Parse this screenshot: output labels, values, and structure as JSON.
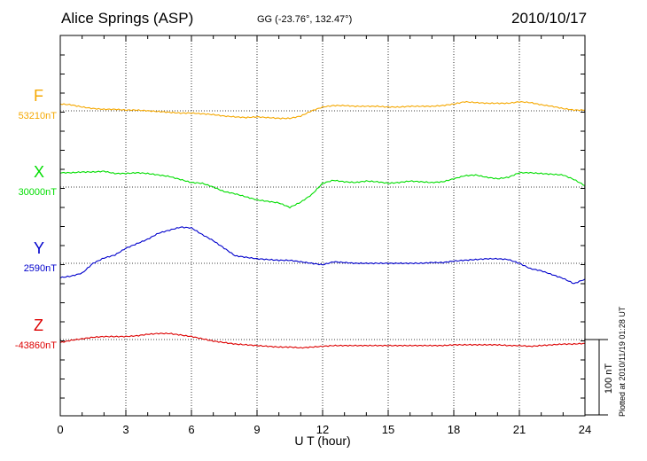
{
  "header": {
    "station": "Alice Springs (ASP)",
    "coords": "GG (-23.76°, 132.47°)",
    "date": "2010/10/17"
  },
  "footer": {
    "plotted_note": "Plotted at 2010/11/19 01:28 UT"
  },
  "scale_bar": {
    "label": "100 nT",
    "value": 100
  },
  "colors": {
    "F": "#f5a800",
    "X": "#00dd00",
    "Y": "#0000cc",
    "Z": "#dd0000"
  },
  "chart_data": {
    "type": "line",
    "xlabel": "U T (hour)",
    "xlim": [
      0,
      24
    ],
    "xticks": [
      0,
      3,
      6,
      9,
      12,
      15,
      18,
      21,
      24
    ],
    "xtick_labels": [
      "0",
      "3",
      "6",
      "9",
      "12",
      "15",
      "18",
      "21",
      "24"
    ],
    "y_unit": "nT",
    "grid": true,
    "series": [
      {
        "name": "F",
        "baseline_label": "53210nT",
        "x": [
          0,
          0.5,
          1,
          1.5,
          2,
          2.5,
          3,
          3.5,
          4,
          4.5,
          5,
          5.5,
          6,
          6.5,
          7,
          7.5,
          8,
          8.5,
          9,
          9.5,
          10,
          10.5,
          11,
          11.5,
          12,
          12.5,
          13,
          13.5,
          14,
          14.5,
          15,
          15.5,
          16,
          16.5,
          17,
          17.5,
          18,
          18.5,
          19,
          19.5,
          20,
          20.5,
          21,
          21.5,
          22,
          22.5,
          23,
          23.5,
          24
        ],
        "values": [
          9,
          8,
          5,
          3,
          2,
          2,
          1,
          1,
          0,
          -1,
          -2,
          -3,
          -3,
          -4,
          -5,
          -7,
          -8,
          -9,
          -8,
          -9,
          -10,
          -10,
          -7,
          0,
          5,
          7,
          7,
          6,
          6,
          6,
          5,
          5,
          6,
          6,
          6,
          7,
          9,
          12,
          11,
          10,
          10,
          10,
          12,
          11,
          8,
          6,
          3,
          1,
          1
        ]
      },
      {
        "name": "X",
        "baseline_label": "30000nT",
        "x": [
          0,
          0.5,
          1,
          1.5,
          2,
          2.5,
          3,
          3.5,
          4,
          4.5,
          5,
          5.5,
          6,
          6.5,
          7,
          7.5,
          8,
          8.5,
          9,
          9.5,
          10,
          10.5,
          11,
          11.5,
          12,
          12.5,
          13,
          13.5,
          14,
          14.5,
          15,
          15.5,
          16,
          16.5,
          17,
          17.5,
          18,
          18.5,
          19,
          19.5,
          20,
          20.5,
          21,
          21.5,
          22,
          22.5,
          23,
          23.5,
          24
        ],
        "values": [
          19,
          19,
          20,
          20,
          21,
          18,
          18,
          19,
          18,
          16,
          14,
          10,
          6,
          5,
          0,
          -6,
          -9,
          -13,
          -17,
          -19,
          -21,
          -27,
          -20,
          -10,
          5,
          9,
          7,
          6,
          8,
          7,
          5,
          6,
          8,
          7,
          6,
          7,
          11,
          15,
          16,
          13,
          11,
          13,
          19,
          19,
          18,
          17,
          16,
          10,
          2
        ]
      },
      {
        "name": "Y",
        "baseline_label": "2590nT",
        "x": [
          0,
          0.5,
          1,
          1.5,
          2,
          2.5,
          3,
          3.5,
          4,
          4.5,
          5,
          5.5,
          6,
          6.5,
          7,
          7.5,
          8,
          8.5,
          9,
          9.5,
          10,
          10.5,
          11,
          11.5,
          12,
          12.5,
          13,
          13.5,
          14,
          14.5,
          15,
          15.5,
          16,
          16.5,
          17,
          17.5,
          18,
          18.5,
          19,
          19.5,
          20,
          20.5,
          21,
          21.5,
          22,
          22.5,
          23,
          23.5,
          24
        ],
        "values": [
          -19,
          -17,
          -13,
          0,
          7,
          11,
          20,
          26,
          32,
          40,
          44,
          48,
          47,
          38,
          30,
          20,
          10,
          8,
          6,
          5,
          4,
          4,
          2,
          0,
          -2,
          2,
          1,
          0,
          0,
          0,
          0,
          0,
          0,
          0,
          1,
          1,
          3,
          4,
          5,
          6,
          6,
          5,
          0,
          -7,
          -10,
          -15,
          -20,
          -27,
          -21
        ]
      },
      {
        "name": "Z",
        "baseline_label": "-43860nT",
        "x": [
          0,
          0.5,
          1,
          1.5,
          2,
          2.5,
          3,
          3.5,
          4,
          4.5,
          5,
          5.5,
          6,
          6.5,
          7,
          7.5,
          8,
          8.5,
          9,
          9.5,
          10,
          10.5,
          11,
          11.5,
          12,
          12.5,
          13,
          13.5,
          14,
          14.5,
          15,
          15.5,
          16,
          16.5,
          17,
          17.5,
          18,
          18.5,
          19,
          19.5,
          20,
          20.5,
          21,
          21.5,
          22,
          22.5,
          23,
          23.5,
          24
        ],
        "values": [
          -4,
          -1,
          1,
          3,
          4,
          4,
          4,
          5,
          7,
          8,
          8,
          6,
          4,
          1,
          -2,
          -4,
          -6,
          -7,
          -8,
          -9,
          -10,
          -10,
          -11,
          -10,
          -9,
          -8,
          -8,
          -8,
          -8,
          -8,
          -8,
          -8,
          -8,
          -8,
          -8,
          -8,
          -7,
          -7,
          -7,
          -7,
          -7,
          -8,
          -8,
          -9,
          -8,
          -7,
          -6,
          -6,
          -5
        ]
      }
    ]
  }
}
